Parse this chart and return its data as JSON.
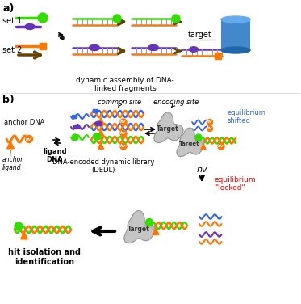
{
  "bg_color": "#ffffff",
  "label_a": "a)",
  "label_b": "b)",
  "colors": {
    "green": "#33dd00",
    "orange": "#ff7700",
    "purple": "#6633bb",
    "blue": "#3366ee",
    "brown": "#664400",
    "red": "#ee0000",
    "gray": "#aaaaaa",
    "light_gray": "#cccccc",
    "black": "#000000",
    "white": "#ffffff",
    "cylinder_blue": "#4488cc",
    "dna_gray": "#999999"
  },
  "text": {
    "set1": "set 1",
    "set2": "set 2",
    "target": "target",
    "dynamic_assembly": "dynamic assembly of DNA-\nlinked fragments",
    "common_site": "common site",
    "encoding_site": "encoding site",
    "anchor_dna": "anchor DNA",
    "anchor_ligand": "anchor\nligand",
    "ligand_dna": "ligand\nDNA",
    "dedl": "DNA-encoded dynamic library\n(DEDL)",
    "equilibrium_shifted": "equilibrium\nshifted",
    "equilibrium_locked": "equilibrium\n\"locked\"",
    "hv": "hv",
    "target_label": "Target",
    "hit_isolation": "hit isolation and\nidentification"
  }
}
